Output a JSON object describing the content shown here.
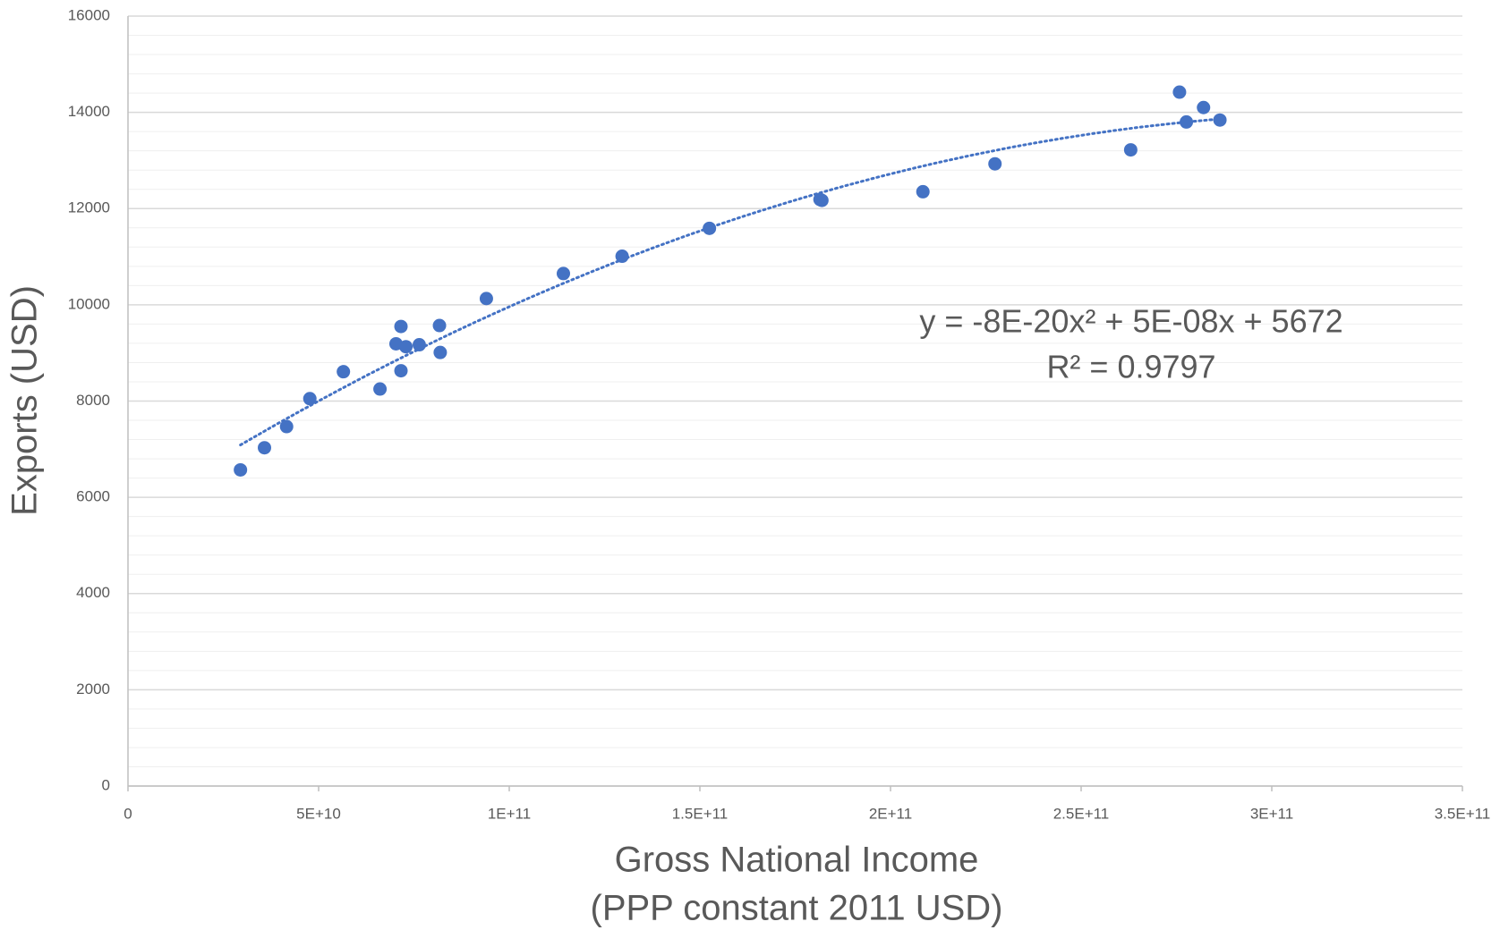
{
  "chart_data": {
    "type": "scatter",
    "x_label": "Gross National Income",
    "x_label_line2": "(PPP constant 2011 USD)",
    "y_label": "Exports (USD)",
    "annotation": [
      "y = -8E-20x² + 5E-08x + 5672",
      "R² = 0.9797"
    ],
    "trendline": "polynomial",
    "color": "#4472c4",
    "grid": true,
    "minor_grid": true,
    "x": [
      29500000000,
      35800000000,
      41600000000,
      47700000000,
      56500000000,
      66100000000,
      70300000000,
      71600000000,
      71600000000,
      72900000000,
      76400000000,
      81700000000,
      81900000000,
      94000000000,
      114200000000,
      129600000000,
      152500000000,
      181500000000,
      182000000000,
      208500000000,
      227400000000,
      263000000000,
      275800000000,
      277600000000,
      282100000000,
      286400000000
    ],
    "values": [
      6570,
      7030,
      7470,
      8050,
      8610,
      8250,
      9190,
      9550,
      8630,
      9130,
      9170,
      9570,
      9010,
      10130,
      10650,
      11010,
      11590,
      12190,
      12170,
      12350,
      12930,
      13220,
      14420,
      13800,
      14100,
      13840
    ],
    "xlim": [
      0,
      350000000000
    ],
    "xticks": [
      0,
      {
        "value": 50000000000,
        "label": "5E+10"
      },
      {
        "value": 100000000000,
        "label": "1E+11"
      },
      {
        "value": 150000000000,
        "label": "1.5E+11"
      },
      {
        "value": 200000000000,
        "label": "2E+11"
      },
      {
        "value": 250000000000,
        "label": "2.5E+11"
      },
      {
        "value": 300000000000,
        "label": "3E+11"
      },
      {
        "value": 350000000000,
        "label": "3.5E+11"
      }
    ],
    "ylim": [
      0,
      16000
    ],
    "yticks": [
      0,
      2000,
      4000,
      6000,
      8000,
      10000,
      12000,
      14000,
      16000
    ]
  }
}
